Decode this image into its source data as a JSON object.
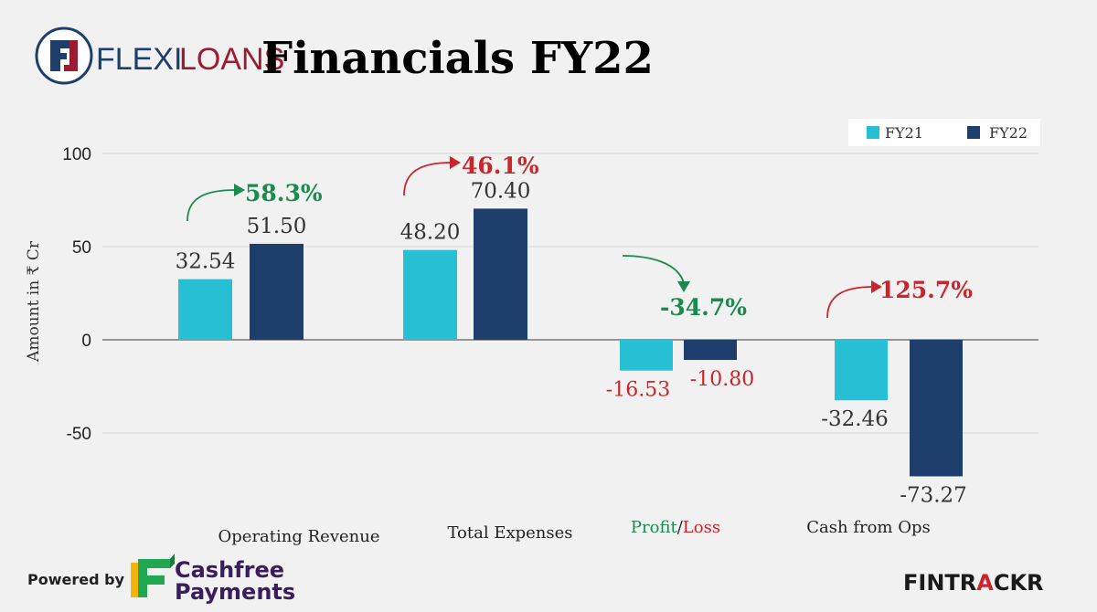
{
  "header": {
    "logo_prefix": "FLEXI",
    "logo_suffix": "LOANS",
    "title": "Financials FY22"
  },
  "footer": {
    "powered_by": "Powered by",
    "partner_line1": "Cashfree",
    "partner_line2": "Payments",
    "brand_prefix": "FINTR",
    "brand_highlight": "A",
    "brand_suffix": "CKR"
  },
  "colors": {
    "fy21": "#26bfd3",
    "fy22": "#1e3f6b",
    "positive": "#1a8a4f",
    "negative": "#c8262c",
    "text": "#333333",
    "grid": "#d6d6d6"
  },
  "chart_data": {
    "type": "bar",
    "ylabel": "Amount in ₹ Cr",
    "ylim": [
      -70,
      100
    ],
    "yticks": [
      -50,
      0,
      50,
      100
    ],
    "ytick_labels": [
      "-50",
      "0",
      "50",
      "100"
    ],
    "legend_position": "top-right",
    "grid": true,
    "categories": [
      "Operating Revenue",
      "Total Expenses",
      "Profit/Loss",
      "Cash from Ops"
    ],
    "category_label_parts": {
      "profit": "Profit",
      "slash": "/",
      "loss": "Loss"
    },
    "series": [
      {
        "name": "FY21",
        "values": [
          32.54,
          48.2,
          -16.53,
          -32.46
        ]
      },
      {
        "name": "FY22",
        "values": [
          51.5,
          70.4,
          -10.8,
          -73.27
        ]
      }
    ],
    "value_labels": [
      [
        "32.54",
        "51.50"
      ],
      [
        "48.20",
        "70.40"
      ],
      [
        "-16.53",
        "-10.80"
      ],
      [
        "-32.46",
        "-73.27"
      ]
    ],
    "changes": [
      {
        "label": "58.3%",
        "tone": "positive",
        "direction": "up"
      },
      {
        "label": "46.1%",
        "tone": "negative",
        "direction": "up"
      },
      {
        "label": "-34.7%",
        "tone": "positive",
        "direction": "down"
      },
      {
        "label": "125.7%",
        "tone": "negative",
        "direction": "up"
      }
    ]
  }
}
